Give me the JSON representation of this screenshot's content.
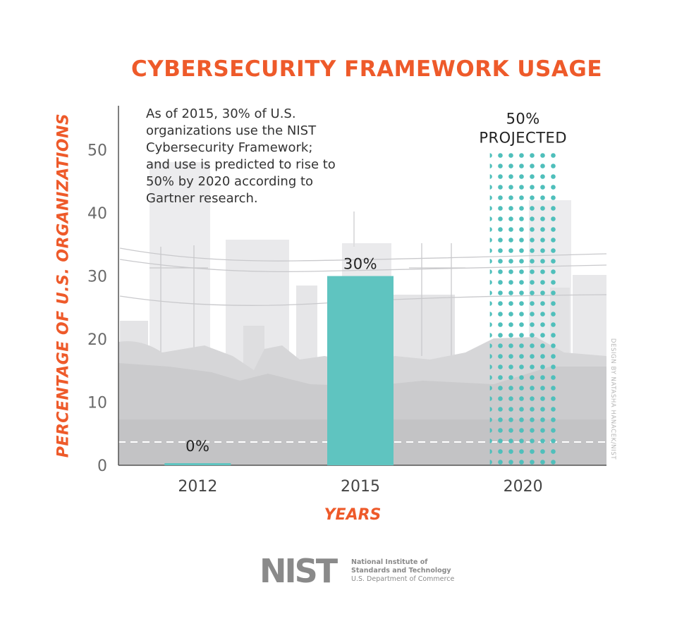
{
  "chart_data": {
    "type": "bar",
    "title": "CYBERSECURITY FRAMEWORK USAGE",
    "xlabel": "YEARS",
    "ylabel": "PERCENTAGE OF U.S. ORGANIZATIONS",
    "categories": [
      "2012",
      "2015",
      "2020"
    ],
    "values": [
      0,
      30,
      50
    ],
    "data_labels": [
      "0%",
      "30%",
      "50%\nPROJECTED"
    ],
    "projected": [
      false,
      false,
      true
    ],
    "ylim": [
      0,
      57
    ],
    "yticks": [
      0,
      10,
      20,
      30,
      40,
      50
    ],
    "grid": false,
    "annotation": "As of 2015, 30% of U.S. organizations use the NIST Cybersecurity Framework; and use is predicted to rise to 50% by 2020 according to Gartner research.",
    "colors": {
      "bar": "#5fc4c0",
      "projected_dots": "#4fbfbb",
      "accent": "#ee5a2a"
    }
  },
  "credit": "DESIGN BY NATASHA HANACEK/NIST",
  "logo": {
    "mark": "NIST",
    "line1": "National Institute of",
    "line2": "Standards and Technology",
    "line3": "U.S. Department of Commerce"
  }
}
